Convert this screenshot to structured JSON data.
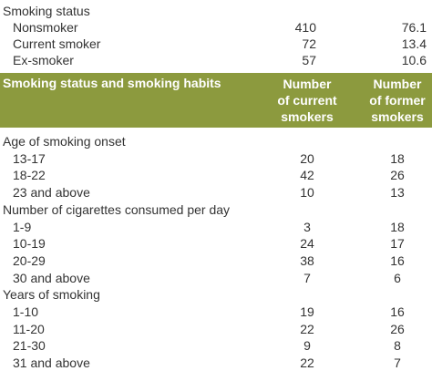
{
  "top_table": {
    "section": "Smoking status",
    "rows": [
      [
        "Nonsmoker",
        410,
        76.1
      ],
      [
        "Current smoker",
        72,
        13.4
      ],
      [
        "Ex-smoker",
        57,
        10.6
      ]
    ]
  },
  "table": {
    "header": {
      "label": "Smoking status and smoking habits",
      "current": [
        "Number",
        "of current",
        "smokers"
      ],
      "former": [
        "Number",
        "of former",
        "smokers"
      ]
    },
    "sections": [
      {
        "title": "Age of smoking onset",
        "rows": [
          [
            "13-17",
            20,
            18
          ],
          [
            "18-22",
            42,
            26
          ],
          [
            "23 and above",
            10,
            13
          ]
        ]
      },
      {
        "title": "Number of cigarettes consumed per day",
        "rows": [
          [
            "1-9",
            3,
            18
          ],
          [
            "10-19",
            24,
            17
          ],
          [
            "20-29",
            38,
            16
          ],
          [
            "30 and above",
            7,
            6
          ]
        ]
      },
      {
        "title": "Years of smoking",
        "rows": [
          [
            "1-10",
            19,
            16
          ],
          [
            "11-20",
            22,
            26
          ],
          [
            "21-30",
            9,
            8
          ],
          [
            "31 and above",
            22,
            7
          ]
        ]
      }
    ]
  }
}
